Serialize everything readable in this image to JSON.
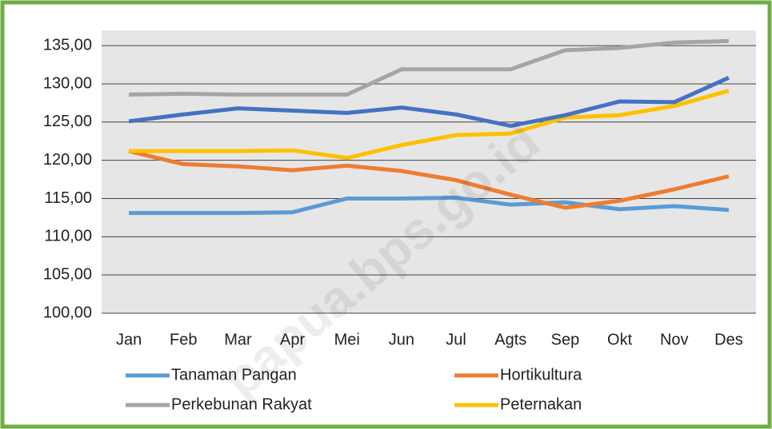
{
  "chart_data": {
    "type": "line",
    "categories": [
      "Jan",
      "Feb",
      "Mar",
      "Apr",
      "Mei",
      "Jun",
      "Jul",
      "Agts",
      "Sep",
      "Okt",
      "Nov",
      "Des"
    ],
    "series": [
      {
        "name": "Tanaman Pangan",
        "color": "#5b9bd5",
        "values": [
          113.1,
          113.1,
          113.1,
          113.2,
          115.0,
          115.0,
          115.1,
          114.2,
          114.5,
          113.6,
          114.0,
          113.5
        ]
      },
      {
        "name": "Hortikultura",
        "color": "#ed7d31",
        "values": [
          121.2,
          119.5,
          119.2,
          118.7,
          119.3,
          118.6,
          117.4,
          115.5,
          113.8,
          114.7,
          116.2,
          117.9
        ]
      },
      {
        "name": "Perkebunan Rakyat",
        "color": "#a5a5a5",
        "values": [
          128.6,
          128.7,
          128.6,
          128.6,
          128.6,
          131.9,
          131.9,
          131.9,
          134.4,
          134.7,
          135.4,
          135.6
        ]
      },
      {
        "name": "Peternakan",
        "color": "#ffc000",
        "values": [
          121.2,
          121.2,
          121.2,
          121.3,
          120.3,
          122.0,
          123.3,
          123.5,
          125.6,
          125.9,
          127.1,
          129.1
        ]
      },
      {
        "color": "#4472c4",
        "values": [
          125.1,
          126.0,
          126.8,
          126.5,
          126.2,
          126.9,
          126.0,
          124.5,
          125.9,
          127.7,
          127.6,
          130.8
        ]
      }
    ],
    "ylim": [
      100,
      137
    ],
    "yticks": [
      {
        "value": 100,
        "label": "100,00"
      },
      {
        "value": 105,
        "label": "105,00"
      },
      {
        "value": 110,
        "label": "110,00"
      },
      {
        "value": 115,
        "label": "115,00"
      },
      {
        "value": 120,
        "label": "120,00"
      },
      {
        "value": 125,
        "label": "125,00"
      },
      {
        "value": 130,
        "label": "130,00"
      },
      {
        "value": 135,
        "label": "135,00"
      }
    ],
    "grid": true,
    "watermark": "papua.bps.go.id"
  }
}
